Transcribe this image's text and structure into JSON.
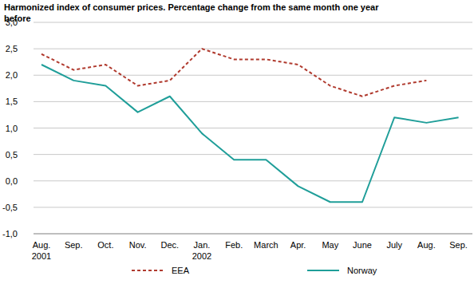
{
  "chart_data": {
    "type": "line",
    "title": "Harmonized index of consumer prices. Percentage change from the same month one year\nbefore",
    "categories": [
      "Aug.\n2001",
      "Sep.",
      "Oct.",
      "Nov.",
      "Dec.",
      "Jan.\n2002",
      "Feb.",
      "March",
      "Apr.",
      "May",
      "June",
      "July",
      "Aug.",
      "Sep."
    ],
    "series": [
      {
        "name": "EEA",
        "color": "#b03a2e",
        "line_style": "dashed",
        "values": [
          2.4,
          2.1,
          2.2,
          1.8,
          1.9,
          2.5,
          2.3,
          2.3,
          2.2,
          1.8,
          1.6,
          1.8,
          1.9,
          null
        ]
      },
      {
        "name": "Norway",
        "color": "#1f9e99",
        "line_style": "solid",
        "values": [
          2.2,
          1.9,
          1.8,
          1.3,
          1.6,
          0.9,
          0.4,
          0.4,
          -0.1,
          -0.4,
          -0.4,
          1.2,
          1.1,
          1.2
        ]
      }
    ],
    "ylim": [
      -1,
      3
    ],
    "yticks": [
      {
        "value": -1,
        "label": "-1,0"
      },
      {
        "value": -0.5,
        "label": "-0,5"
      },
      {
        "value": 0,
        "label": "0,0"
      },
      {
        "value": 0.5,
        "label": "0,5"
      },
      {
        "value": 1,
        "label": "1,0"
      },
      {
        "value": 1.5,
        "label": "1,5"
      },
      {
        "value": 2,
        "label": "2,0"
      },
      {
        "value": 2.5,
        "label": "2,5"
      },
      {
        "value": 3,
        "label": "3,0"
      }
    ],
    "grid": true,
    "legend": "bottom"
  }
}
